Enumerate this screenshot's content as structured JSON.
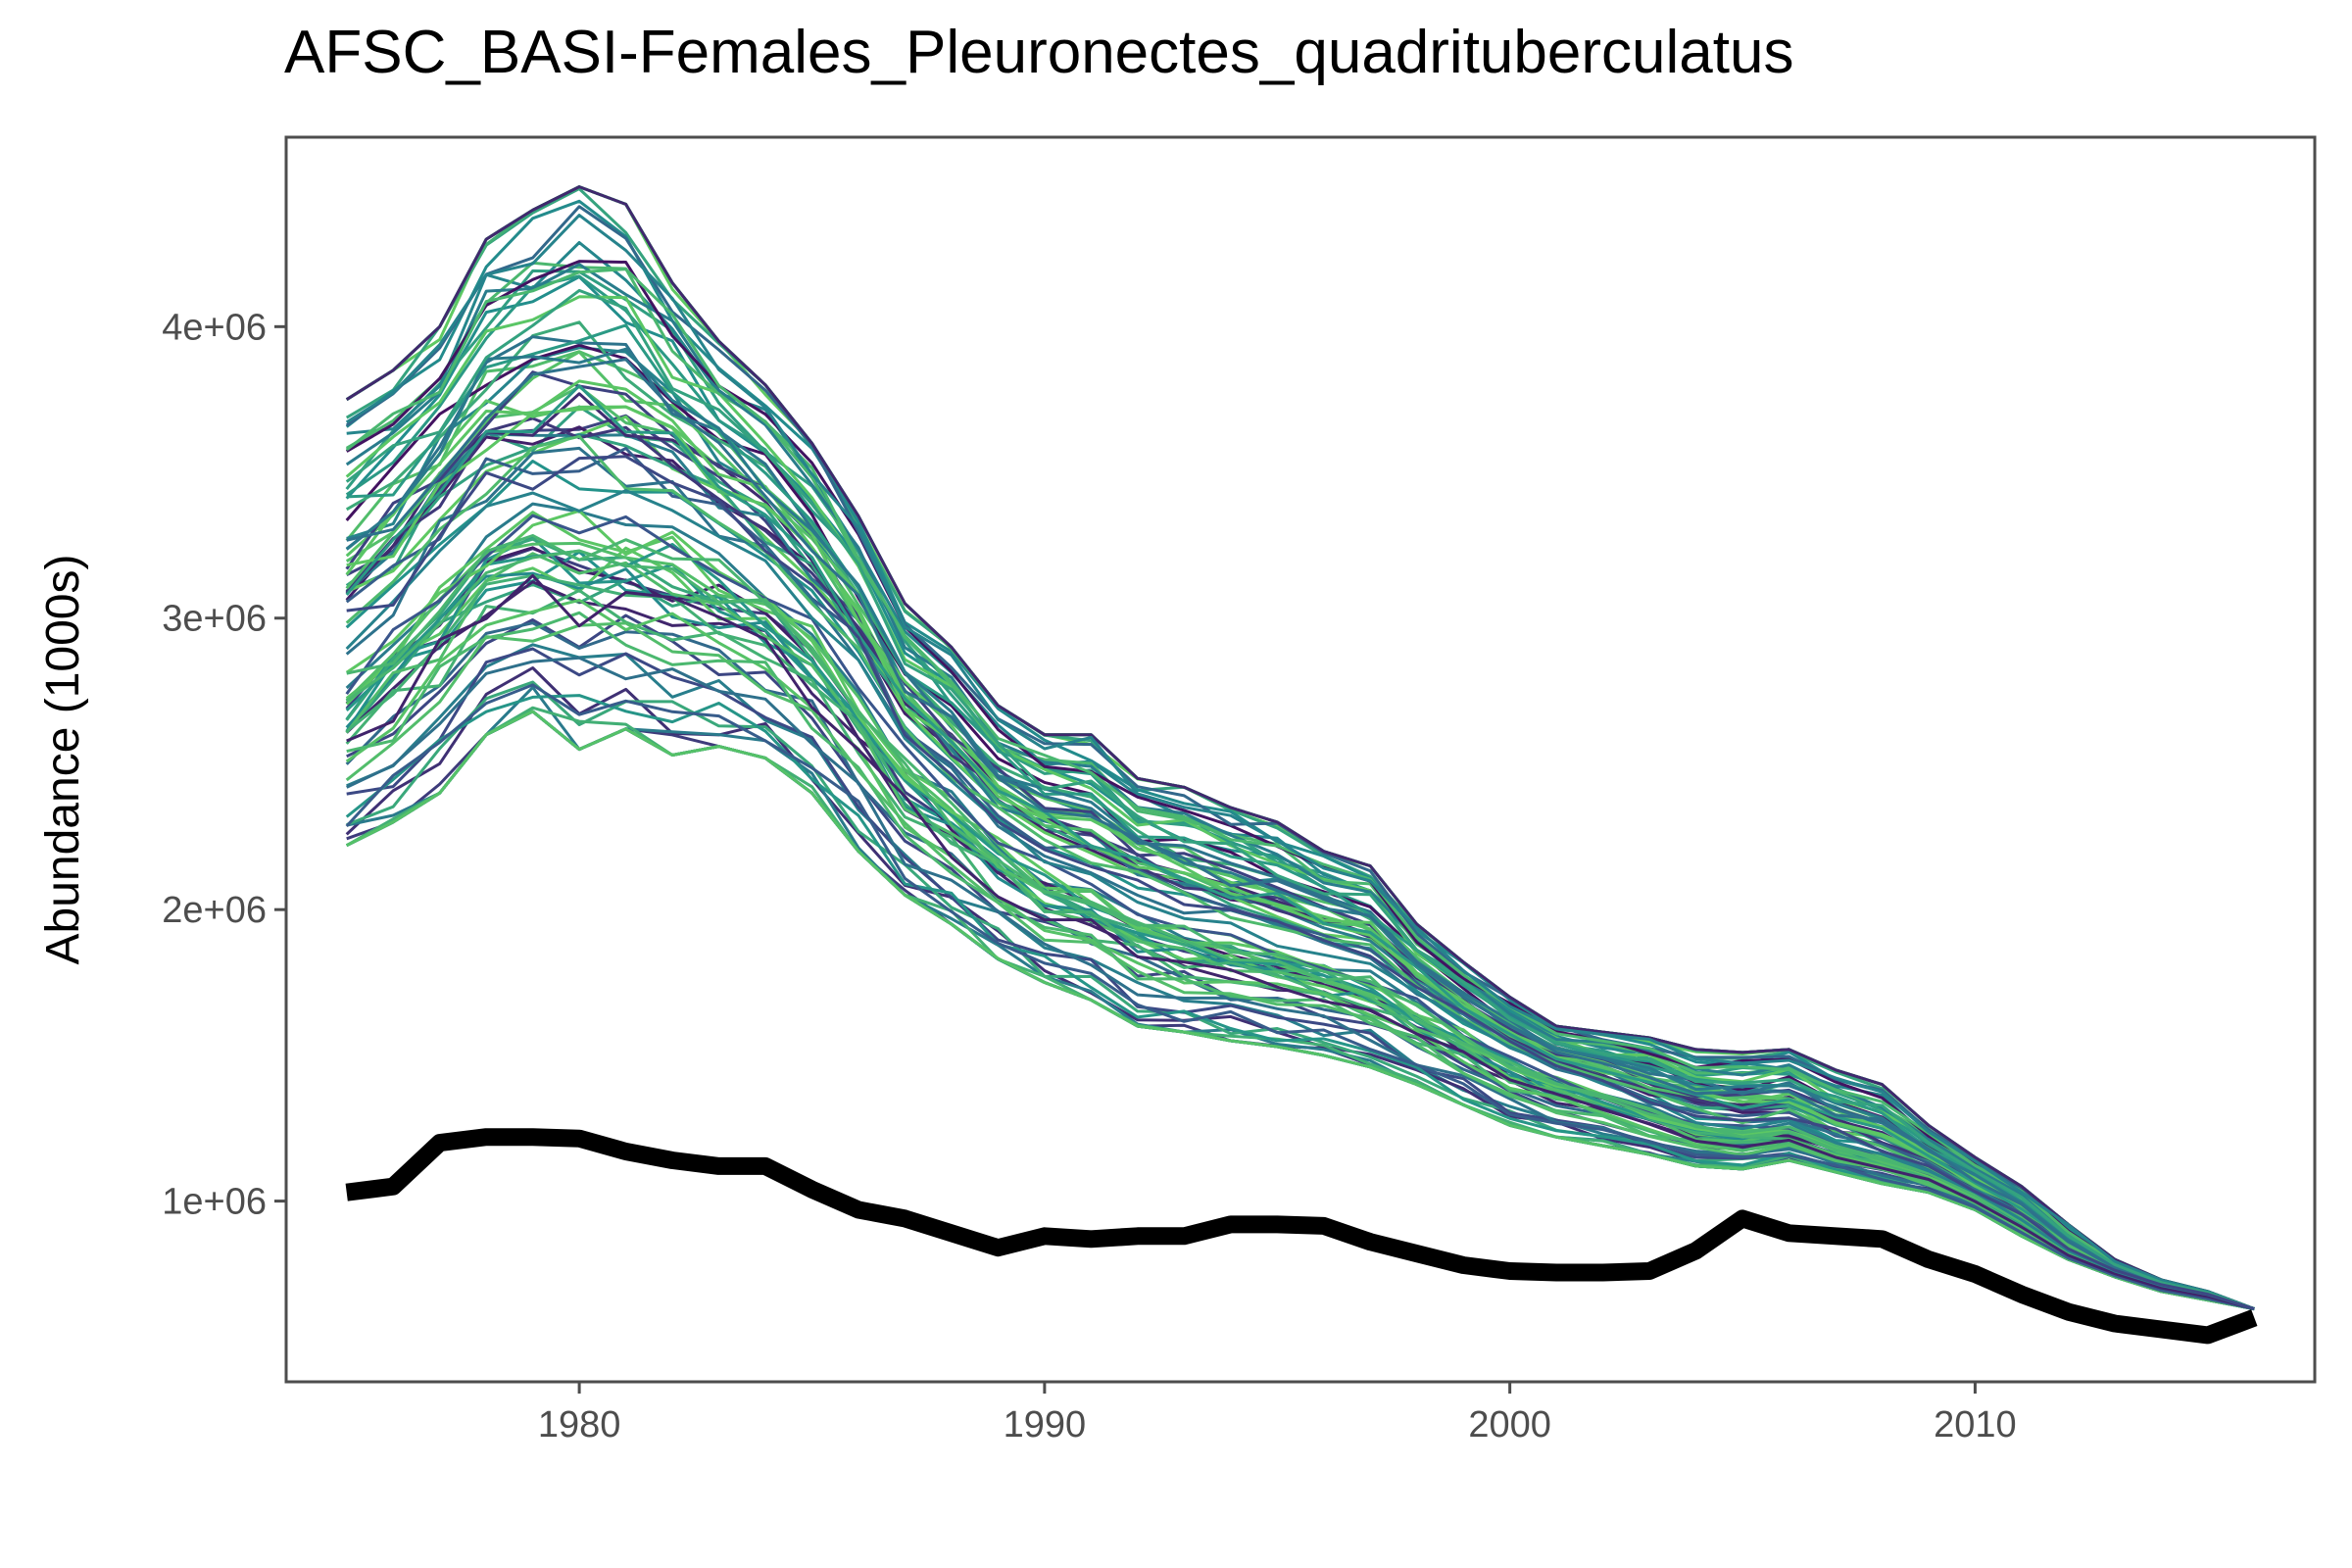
{
  "chart_data": {
    "type": "line",
    "title": "AFSC_BASI-Females_Pleuronectes_quadrituberculatus",
    "xlabel": "",
    "ylabel": "Abundance (1000s)",
    "xlim": [
      1973.7,
      2017.3
    ],
    "ylim": [
      380000,
      4650000
    ],
    "x_ticks": [
      1980,
      1990,
      2000,
      2010
    ],
    "x_tick_labels": [
      "1980",
      "1990",
      "2000",
      "2010"
    ],
    "y_ticks": [
      1000000,
      2000000,
      3000000,
      4000000
    ],
    "y_tick_labels": [
      "1e+06",
      "2e+06",
      "3e+06",
      "4e+06"
    ],
    "grid": false,
    "legend": "none",
    "x": [
      1975,
      1976,
      1977,
      1978,
      1979,
      1980,
      1981,
      1982,
      1983,
      1984,
      1985,
      1986,
      1987,
      1988,
      1989,
      1990,
      1991,
      1992,
      1993,
      1994,
      1995,
      1996,
      1997,
      1998,
      1999,
      2000,
      2001,
      2002,
      2003,
      2004,
      2005,
      2006,
      2007,
      2008,
      2009,
      2010,
      2011,
      2012,
      2013,
      2014,
      2015,
      2016
    ],
    "ensemble": {
      "description_color_range": [
        "#440154",
        "#3b528b",
        "#21908c",
        "#5ec962"
      ],
      "median": [
        2900000,
        3050000,
        3250000,
        3400000,
        3450000,
        3480000,
        3450000,
        3400000,
        3300000,
        3200000,
        3050000,
        2850000,
        2600000,
        2450000,
        2300000,
        2200000,
        2130000,
        2070000,
        2000000,
        1960000,
        1920000,
        1880000,
        1830000,
        1720000,
        1620000,
        1530000,
        1460000,
        1400000,
        1340000,
        1290000,
        1270000,
        1280000,
        1210000,
        1170000,
        1110000,
        1030000,
        940000,
        830000,
        760000,
        710000,
        680000,
        630000
      ],
      "upper": [
        3750000,
        3850000,
        4000000,
        4300000,
        4400000,
        4480000,
        4420000,
        4150000,
        3950000,
        3800000,
        3600000,
        3350000,
        3050000,
        2900000,
        2700000,
        2600000,
        2600000,
        2450000,
        2420000,
        2350000,
        2300000,
        2200000,
        2150000,
        1950000,
        1820000,
        1700000,
        1600000,
        1580000,
        1560000,
        1520000,
        1510000,
        1520000,
        1450000,
        1400000,
        1260000,
        1150000,
        1050000,
        920000,
        800000,
        730000,
        690000,
        630000
      ],
      "lower": [
        2220000,
        2300000,
        2400000,
        2600000,
        2680000,
        2550000,
        2620000,
        2530000,
        2560000,
        2520000,
        2400000,
        2200000,
        2050000,
        1950000,
        1830000,
        1750000,
        1690000,
        1600000,
        1580000,
        1550000,
        1530000,
        1500000,
        1460000,
        1400000,
        1330000,
        1260000,
        1220000,
        1190000,
        1160000,
        1120000,
        1110000,
        1140000,
        1100000,
        1060000,
        1030000,
        970000,
        880000,
        800000,
        740000,
        690000,
        660000,
        630000
      ],
      "n_lines": 90
    },
    "series": [
      {
        "values": [
          1030000,
          1050000,
          1200000,
          1220000,
          1220000,
          1215000,
          1170000,
          1140000,
          1120000,
          1120000,
          1040000,
          970000,
          940000,
          890000,
          840000,
          880000,
          870000,
          880000,
          880000,
          920000,
          920000,
          915000,
          860000,
          820000,
          780000,
          760000,
          755000,
          755000,
          760000,
          830000,
          940000,
          890000,
          880000,
          870000,
          800000,
          750000,
          680000,
          620000,
          580000,
          560000,
          540000,
          600000
        ],
        "color": "#000000",
        "style": "thick"
      }
    ]
  }
}
